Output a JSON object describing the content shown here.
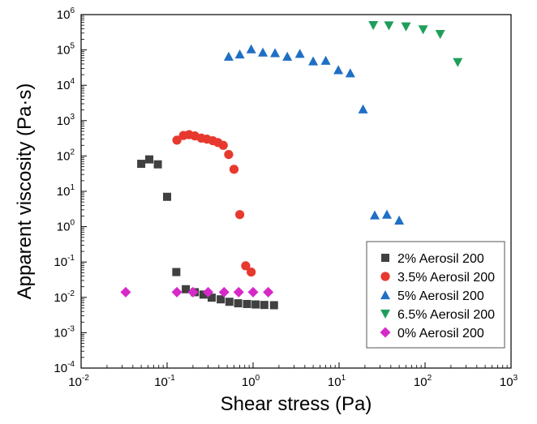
{
  "chart_data": {
    "type": "scatter",
    "title": "",
    "xlabel": "Shear stress (Pa)",
    "ylabel": "Apparent viscosity (Pa·s)",
    "xscale": "log",
    "yscale": "log",
    "xlim": [
      0.01,
      1000
    ],
    "ylim": [
      0.0001,
      1000000
    ],
    "x_ticks": [
      {
        "base": "10",
        "exp": "-2"
      },
      {
        "base": "10",
        "exp": "-1"
      },
      {
        "base": "10",
        "exp": "0"
      },
      {
        "base": "10",
        "exp": "1"
      },
      {
        "base": "10",
        "exp": "2"
      },
      {
        "base": "10",
        "exp": "3"
      }
    ],
    "y_ticks": [
      {
        "base": "10",
        "exp": "-4"
      },
      {
        "base": "10",
        "exp": "-3"
      },
      {
        "base": "10",
        "exp": "-2"
      },
      {
        "base": "10",
        "exp": "-1"
      },
      {
        "base": "10",
        "exp": "0"
      },
      {
        "base": "10",
        "exp": "1"
      },
      {
        "base": "10",
        "exp": "2"
      },
      {
        "base": "10",
        "exp": "3"
      },
      {
        "base": "10",
        "exp": "4"
      },
      {
        "base": "10",
        "exp": "5"
      },
      {
        "base": "10",
        "exp": "6"
      }
    ],
    "grid": false,
    "legend_position": "bottom-right",
    "series": [
      {
        "name": "2% Aerosil 200",
        "marker": "square",
        "color": "#404040",
        "points": [
          [
            0.05,
            60
          ],
          [
            0.062,
            80
          ],
          [
            0.078,
            58
          ],
          [
            0.1,
            7
          ],
          [
            0.128,
            0.052
          ],
          [
            0.165,
            0.017
          ],
          [
            0.21,
            0.014
          ],
          [
            0.265,
            0.012
          ],
          [
            0.33,
            0.0098
          ],
          [
            0.42,
            0.0088
          ],
          [
            0.53,
            0.0075
          ],
          [
            0.67,
            0.0068
          ],
          [
            0.85,
            0.0065
          ],
          [
            1.07,
            0.0063
          ],
          [
            1.35,
            0.0061
          ],
          [
            1.75,
            0.006
          ]
        ]
      },
      {
        "name": "3.5% Aerosil 200",
        "marker": "circle",
        "color": "#e8392f",
        "points": [
          [
            0.13,
            280
          ],
          [
            0.155,
            380
          ],
          [
            0.18,
            400
          ],
          [
            0.21,
            370
          ],
          [
            0.25,
            320
          ],
          [
            0.29,
            300
          ],
          [
            0.34,
            270
          ],
          [
            0.39,
            240
          ],
          [
            0.45,
            200
          ],
          [
            0.52,
            110
          ],
          [
            0.6,
            42
          ],
          [
            0.7,
            2.2
          ],
          [
            0.82,
            0.078
          ],
          [
            0.95,
            0.052
          ]
        ]
      },
      {
        "name": "5% Aerosil 200",
        "marker": "triangle-up",
        "color": "#1f6fc5",
        "points": [
          [
            0.52,
            65000
          ],
          [
            0.7,
            75000
          ],
          [
            0.95,
            105000
          ],
          [
            1.3,
            85000
          ],
          [
            1.8,
            82000
          ],
          [
            2.5,
            65000
          ],
          [
            3.5,
            78000
          ],
          [
            5,
            48000
          ],
          [
            7,
            50000
          ],
          [
            9.8,
            27000
          ],
          [
            13.5,
            22000
          ],
          [
            19,
            2100
          ],
          [
            26,
            2.1
          ],
          [
            36,
            2.2
          ],
          [
            50,
            1.5
          ]
        ]
      },
      {
        "name": "6.5% Aerosil 200",
        "marker": "triangle-down",
        "color": "#1f9e5a",
        "points": [
          [
            25,
            500000
          ],
          [
            38,
            490000
          ],
          [
            60,
            460000
          ],
          [
            95,
            380000
          ],
          [
            150,
            280000
          ],
          [
            240,
            45000
          ]
        ]
      },
      {
        "name": "0% Aerosil 200",
        "marker": "diamond",
        "color": "#d629c8",
        "points": [
          [
            0.033,
            0.014
          ],
          [
            0.13,
            0.014
          ],
          [
            0.2,
            0.014
          ],
          [
            0.3,
            0.014
          ],
          [
            0.46,
            0.014
          ],
          [
            0.68,
            0.014
          ],
          [
            1.0,
            0.014
          ],
          [
            1.5,
            0.014
          ]
        ]
      }
    ]
  }
}
